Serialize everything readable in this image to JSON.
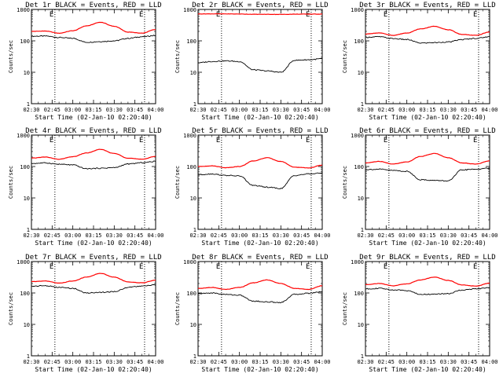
{
  "chart_data": [
    {
      "type": "line",
      "title": "Det 1r BLACK = Events, RED = LLD",
      "xlabel": "Start Time (02-Jan-10 02:20:40)",
      "ylabel": "Counts/sec",
      "yscale": "log",
      "ylim": [
        1,
        1000
      ],
      "yticks": [
        "1",
        "10",
        "100",
        "1000"
      ],
      "xticks": [
        "02:30",
        "02:45",
        "03:00",
        "03:15",
        "03:30",
        "03:45",
        "04:00"
      ],
      "markers": [
        "E",
        "E"
      ],
      "series": [
        {
          "name": "Events",
          "color": "#000000",
          "values": [
            140,
            142,
            128,
            120,
            90,
            95,
            100,
            120,
            135,
            148
          ]
        },
        {
          "name": "LLD",
          "color": "#ff0000",
          "values": [
            200,
            205,
            175,
            210,
            300,
            390,
            290,
            190,
            175,
            230
          ]
        }
      ]
    },
    {
      "type": "line",
      "title": "Det 2r BLACK = Events, RED = LLD",
      "xlabel": "Start Time (02-Jan-10 02:20:40)",
      "ylabel": "Counts/sec",
      "yscale": "log",
      "ylim": [
        1,
        1000
      ],
      "yticks": [
        "1",
        "10",
        "100",
        "1000"
      ],
      "xticks": [
        "02:30",
        "02:45",
        "03:00",
        "03:15",
        "03:30",
        "03:45",
        "04:00"
      ],
      "markers": [
        "E",
        "E"
      ],
      "series": [
        {
          "name": "Events",
          "color": "#000000",
          "values": [
            20,
            22,
            23,
            22,
            12,
            11,
            10,
            24,
            25,
            27
          ]
        },
        {
          "name": "LLD",
          "color": "#ff0000",
          "values": [
            720,
            722,
            720,
            715,
            700,
            698,
            695,
            705,
            710,
            712
          ]
        }
      ]
    },
    {
      "type": "line",
      "title": "Det 3r BLACK = Events, RED = LLD",
      "xlabel": "Start Time (02-Jan-10 02:20:40)",
      "ylabel": "Counts/sec",
      "yscale": "log",
      "ylim": [
        1,
        1000
      ],
      "yticks": [
        "1",
        "10",
        "100",
        "1000"
      ],
      "xticks": [
        "02:30",
        "02:45",
        "03:00",
        "03:15",
        "03:30",
        "03:45",
        "04:00"
      ],
      "markers": [
        "E",
        "E"
      ],
      "series": [
        {
          "name": "Events",
          "color": "#000000",
          "values": [
            130,
            135,
            118,
            110,
            85,
            88,
            92,
            110,
            120,
            135
          ]
        },
        {
          "name": "LLD",
          "color": "#ff0000",
          "values": [
            165,
            178,
            150,
            178,
            240,
            290,
            225,
            160,
            150,
            190
          ]
        }
      ]
    },
    {
      "type": "line",
      "title": "Det 4r BLACK = Events, RED = LLD",
      "xlabel": "Start Time (02-Jan-10 02:20:40)",
      "ylabel": "Counts/sec",
      "yscale": "log",
      "ylim": [
        1,
        1000
      ],
      "yticks": [
        "1",
        "10",
        "100",
        "1000"
      ],
      "xticks": [
        "02:30",
        "02:45",
        "03:00",
        "03:15",
        "03:30",
        "03:45",
        "04:00"
      ],
      "markers": [
        "E",
        "E"
      ],
      "series": [
        {
          "name": "Events",
          "color": "#000000",
          "values": [
            125,
            130,
            118,
            112,
            85,
            88,
            92,
            120,
            132,
            145
          ]
        },
        {
          "name": "LLD",
          "color": "#ff0000",
          "values": [
            185,
            200,
            170,
            205,
            270,
            350,
            260,
            185,
            170,
            210
          ]
        }
      ]
    },
    {
      "type": "line",
      "title": "Det 5r BLACK = Events, RED = LLD",
      "xlabel": "Start Time (02-Jan-10 02:20:40)",
      "ylabel": "Counts/sec",
      "yscale": "log",
      "ylim": [
        1,
        1000
      ],
      "yticks": [
        "1",
        "10",
        "100",
        "1000"
      ],
      "xticks": [
        "02:30",
        "02:45",
        "03:00",
        "03:15",
        "03:30",
        "03:45",
        "04:00"
      ],
      "markers": [
        "E",
        "E"
      ],
      "series": [
        {
          "name": "Events",
          "color": "#000000",
          "values": [
            55,
            58,
            52,
            50,
            25,
            22,
            20,
            52,
            58,
            62
          ]
        },
        {
          "name": "LLD",
          "color": "#ff0000",
          "values": [
            100,
            105,
            92,
            100,
            150,
            190,
            145,
            95,
            90,
            110
          ]
        }
      ]
    },
    {
      "type": "line",
      "title": "Det 6r BLACK = Events, RED = LLD",
      "xlabel": "Start Time (02-Jan-10 02:20:40)",
      "ylabel": "Counts/sec",
      "yscale": "log",
      "ylim": [
        1,
        1000
      ],
      "yticks": [
        "1",
        "10",
        "100",
        "1000"
      ],
      "xticks": [
        "02:30",
        "02:45",
        "03:00",
        "03:15",
        "03:30",
        "03:45",
        "04:00"
      ],
      "markers": [
        "E",
        "E"
      ],
      "series": [
        {
          "name": "Events",
          "color": "#000000",
          "values": [
            80,
            82,
            75,
            70,
            38,
            36,
            35,
            78,
            82,
            88
          ]
        },
        {
          "name": "LLD",
          "color": "#ff0000",
          "values": [
            130,
            145,
            120,
            140,
            210,
            260,
            190,
            130,
            120,
            150
          ]
        }
      ]
    },
    {
      "type": "line",
      "title": "Det 7r BLACK = Events, RED = LLD",
      "xlabel": "Start Time (02-Jan-10 02:20:40)",
      "ylabel": "Counts/sec",
      "yscale": "log",
      "ylim": [
        1,
        1000
      ],
      "yticks": [
        "1",
        "10",
        "100",
        "1000"
      ],
      "xticks": [
        "02:30",
        "02:45",
        "03:00",
        "03:15",
        "03:30",
        "03:45",
        "04:00"
      ],
      "markers": [
        "E",
        "E"
      ],
      "series": [
        {
          "name": "Events",
          "color": "#000000",
          "values": [
            165,
            170,
            150,
            140,
            100,
            105,
            110,
            150,
            165,
            180
          ]
        },
        {
          "name": "LLD",
          "color": "#ff0000",
          "values": [
            230,
            240,
            205,
            240,
            320,
            420,
            320,
            225,
            210,
            255
          ]
        }
      ]
    },
    {
      "type": "line",
      "title": "Det 8r BLACK = Events, RED = LLD",
      "xlabel": "Start Time (02-Jan-10 02:20:40)",
      "ylabel": "Counts/sec",
      "yscale": "log",
      "ylim": [
        1,
        1000
      ],
      "yticks": [
        "1",
        "10",
        "100",
        "1000"
      ],
      "xticks": [
        "02:30",
        "02:45",
        "03:00",
        "03:15",
        "03:30",
        "03:45",
        "04:00"
      ],
      "markers": [
        "E",
        "E"
      ],
      "series": [
        {
          "name": "Events",
          "color": "#000000",
          "values": [
            95,
            100,
            90,
            85,
            55,
            52,
            50,
            90,
            98,
            110
          ]
        },
        {
          "name": "LLD",
          "color": "#ff0000",
          "values": [
            140,
            150,
            130,
            150,
            210,
            260,
            200,
            140,
            130,
            170
          ]
        }
      ]
    },
    {
      "type": "line",
      "title": "Det 9r BLACK = Events, RED = LLD",
      "xlabel": "Start Time (02-Jan-10 02:20:40)",
      "ylabel": "Counts/sec",
      "yscale": "log",
      "ylim": [
        1,
        1000
      ],
      "yticks": [
        "1",
        "10",
        "100",
        "1000"
      ],
      "xticks": [
        "02:30",
        "02:45",
        "03:00",
        "03:15",
        "03:30",
        "03:45",
        "04:00"
      ],
      "markers": [
        "E",
        "E"
      ],
      "series": [
        {
          "name": "Events",
          "color": "#000000",
          "values": [
            135,
            140,
            125,
            120,
            90,
            92,
            95,
            125,
            135,
            145
          ]
        },
        {
          "name": "LLD",
          "color": "#ff0000",
          "values": [
            185,
            200,
            170,
            195,
            260,
            320,
            250,
            180,
            165,
            205
          ]
        }
      ]
    }
  ]
}
